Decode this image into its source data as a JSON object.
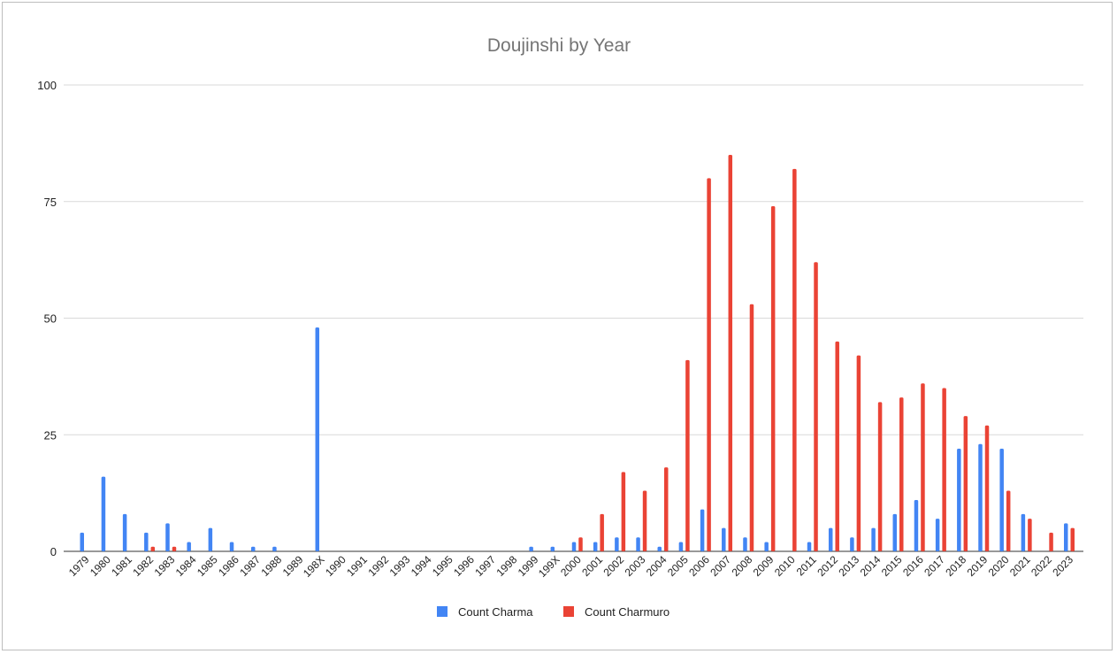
{
  "chart_data": {
    "type": "bar",
    "title": "Doujinshi by Year",
    "xlabel": "",
    "ylabel": "",
    "ylim": [
      0,
      100
    ],
    "yticks": [
      "0",
      "25",
      "50",
      "75",
      "100"
    ],
    "grid": true,
    "legend_position": "bottom",
    "categories": [
      "1979",
      "1980",
      "1981",
      "1982",
      "1983",
      "1984",
      "1985",
      "1986",
      "1987",
      "1988",
      "1989",
      "198X",
      "1990",
      "1991",
      "1992",
      "1993",
      "1994",
      "1995",
      "1996",
      "1997",
      "1998",
      "1999",
      "199X",
      "2000",
      "2001",
      "2002",
      "2003",
      "2004",
      "2005",
      "2006",
      "2007",
      "2008",
      "2009",
      "2010",
      "2011",
      "2012",
      "2013",
      "2014",
      "2015",
      "2016",
      "2017",
      "2018",
      "2019",
      "2020",
      "2021",
      "2022",
      "2023"
    ],
    "series": [
      {
        "name": "Count Charma",
        "color": "#4285f4",
        "values": [
          4,
          16,
          8,
          4,
          6,
          2,
          5,
          2,
          1,
          1,
          0,
          48,
          0,
          0,
          0,
          0,
          0,
          0,
          0,
          0,
          0,
          1,
          1,
          2,
          2,
          3,
          3,
          1,
          2,
          9,
          5,
          3,
          2,
          0,
          2,
          5,
          3,
          5,
          8,
          11,
          7,
          22,
          23,
          22,
          8,
          0,
          6
        ]
      },
      {
        "name": "Count Charmuro",
        "color": "#ea4335",
        "values": [
          0,
          0,
          0,
          1,
          1,
          0,
          0,
          0,
          0,
          0,
          0,
          0,
          0,
          0,
          0,
          0,
          0,
          0,
          0,
          0,
          0,
          0,
          0,
          3,
          8,
          17,
          13,
          18,
          41,
          80,
          85,
          53,
          74,
          82,
          62,
          45,
          42,
          32,
          33,
          36,
          35,
          29,
          27,
          13,
          7,
          4,
          5
        ]
      }
    ]
  }
}
